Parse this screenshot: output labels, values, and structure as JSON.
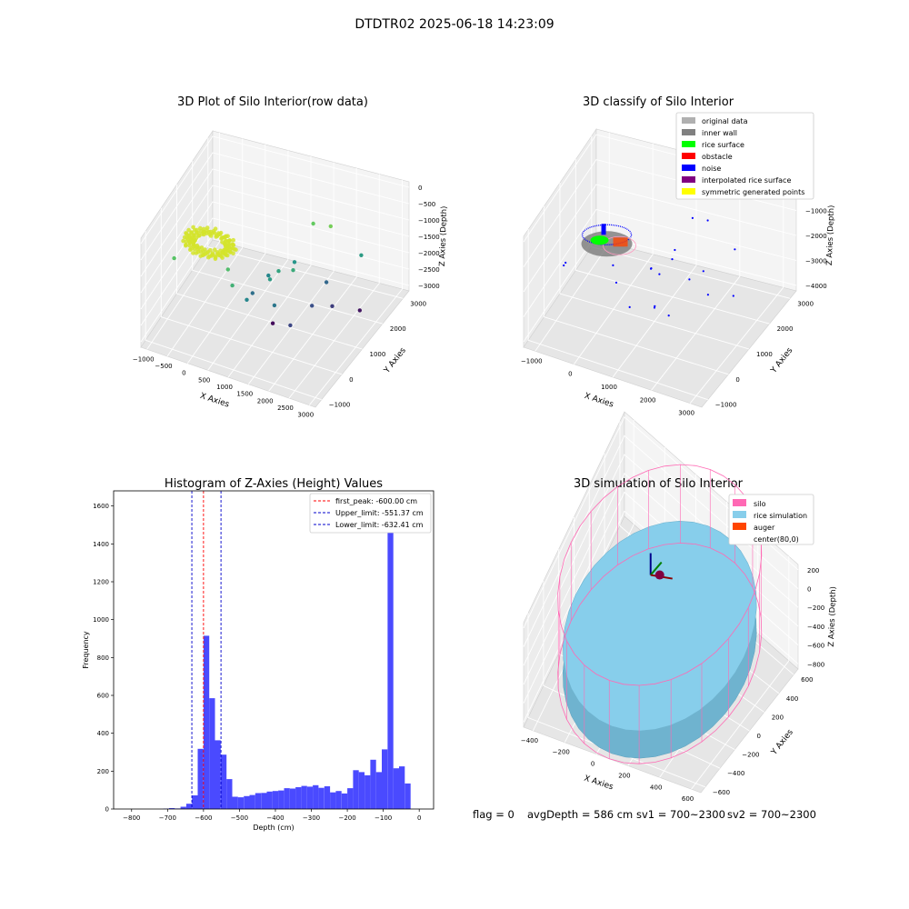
{
  "figure": {
    "suptitle": "DTDTR02 2025-06-18 14:23:09",
    "status_line": {
      "flag": "flag = 0",
      "avg_depth": "avgDepth = 586 cm",
      "sv1": "sv1 = 700~2300",
      "sv2": "sv2 = 700~2300"
    }
  },
  "colors": {
    "hist_bar": "#4a4aff",
    "first_peak_line": "#ff0000",
    "limit_line": "#0000cc",
    "pane_left": "#ececec",
    "pane_right": "#f4f4f4",
    "pane_floor": "#e6e6e6",
    "rice_sim": "#87ceeb",
    "silo": "#ff69b4",
    "auger": "#ff4500"
  },
  "chart_data": [
    {
      "type": "scatter3d",
      "title": "3D Plot of Silo Interior(row data)",
      "xlabel": "X Axies",
      "ylabel": "Y Axies",
      "zlabel": "Z Axies (Depth)",
      "xticks": [
        "−1000",
        "−500",
        "0",
        "500",
        "1000",
        "1500",
        "2000",
        "2500",
        "3000"
      ],
      "yticks": [
        "−1000",
        "0",
        "1000",
        "2000",
        "3000"
      ],
      "zticks": [
        "0",
        "−500",
        "−1000",
        "−1500",
        "−2000",
        "−2500",
        "−3000"
      ],
      "xlim": [
        -1000,
        3000
      ],
      "ylim": [
        -1500,
        3500
      ],
      "zlim": [
        -3300,
        0
      ],
      "colormap": "viridis by depth",
      "cluster": {
        "center_x": 80,
        "center_y": 0,
        "radius": 600,
        "depth_range": [
          -700,
          -550
        ],
        "color": "#d4e42a"
      },
      "points": [
        {
          "x": 2700,
          "y": 2500,
          "z": -3100
        },
        {
          "x": 1200,
          "y": 1000,
          "z": -3200
        },
        {
          "x": 1800,
          "y": 400,
          "z": -2600
        },
        {
          "x": 1500,
          "y": 200,
          "z": -2000
        },
        {
          "x": 1000,
          "y": -200,
          "z": -1800
        },
        {
          "x": 2000,
          "y": 1300,
          "z": -2500
        },
        {
          "x": 2300,
          "y": 1800,
          "z": -2700
        },
        {
          "x": 2700,
          "y": 2600,
          "z": -1500
        },
        {
          "x": 1700,
          "y": 2300,
          "z": -800
        },
        {
          "x": 1500,
          "y": 1600,
          "z": -1600
        },
        {
          "x": 800,
          "y": -600,
          "z": -1200
        },
        {
          "x": 1300,
          "y": 500,
          "z": -1500
        },
        {
          "x": 2100,
          "y": 2300,
          "z": -700
        },
        {
          "x": 1400,
          "y": 800,
          "z": -1400
        },
        {
          "x": 600,
          "y": -300,
          "z": -1000
        },
        {
          "x": 900,
          "y": 500,
          "z": -2100
        },
        {
          "x": -500,
          "y": -700,
          "z": -900
        },
        {
          "x": 2100,
          "y": 2000,
          "z": -2200
        },
        {
          "x": 1100,
          "y": 1000,
          "z": -1800
        },
        {
          "x": 1700,
          "y": 900,
          "z": -1300
        }
      ]
    },
    {
      "type": "scatter3d",
      "title": "3D classify of Silo Interior",
      "xlabel": "X Axies",
      "ylabel": "Y Axies",
      "zlabel": "Z Axies (Depth)",
      "xticks": [
        "−1000",
        "0",
        "1000",
        "2000",
        "3000"
      ],
      "yticks": [
        "−1000",
        "0",
        "1000",
        "2000",
        "3000"
      ],
      "zticks": [
        "0",
        "−1000",
        "−2000",
        "−3000",
        "−4000"
      ],
      "xlim": [
        -1300,
        3400
      ],
      "ylim": [
        -1500,
        3500
      ],
      "zlim": [
        -4000,
        0
      ],
      "legend_position": "upper right",
      "legend": [
        {
          "label": "original data",
          "color": "#b0b0b0"
        },
        {
          "label": "inner wall",
          "color": "#808080"
        },
        {
          "label": "rice surface",
          "color": "#00ff00"
        },
        {
          "label": "obstacle",
          "color": "#ff0000"
        },
        {
          "label": "noise",
          "color": "#0000ff"
        },
        {
          "label": "interpolated rice surface",
          "color": "#800080"
        },
        {
          "label": "symmetric generated points",
          "color": "#ffff00"
        }
      ],
      "noise_points": [
        {
          "x": 2700,
          "y": 2500,
          "z": -3400
        },
        {
          "x": 1200,
          "y": 1000,
          "z": -3300
        },
        {
          "x": 1800,
          "y": 400,
          "z": -2900
        },
        {
          "x": 1500,
          "y": 200,
          "z": -2600
        },
        {
          "x": 1000,
          "y": -200,
          "z": -2500
        },
        {
          "x": 2000,
          "y": 1300,
          "z": -2200
        },
        {
          "x": 2300,
          "y": 1800,
          "z": -3000
        },
        {
          "x": 2700,
          "y": 2600,
          "z": -1800
        },
        {
          "x": 1700,
          "y": 2300,
          "z": -900
        },
        {
          "x": 1500,
          "y": 1600,
          "z": -1600
        },
        {
          "x": 800,
          "y": -600,
          "z": -1400
        },
        {
          "x": 1300,
          "y": 500,
          "z": -1500
        },
        {
          "x": 2100,
          "y": 2300,
          "z": -800
        },
        {
          "x": 1400,
          "y": 800,
          "z": -1900
        },
        {
          "x": 600,
          "y": -300,
          "z": -1100
        },
        {
          "x": -500,
          "y": -700,
          "z": -1200
        },
        {
          "x": 2100,
          "y": 2000,
          "z": -2400
        },
        {
          "x": 1100,
          "y": 1000,
          "z": -2000
        },
        {
          "x": 1700,
          "y": 900,
          "z": -1300
        },
        {
          "x": -700,
          "y": -300,
          "z": -1700
        }
      ]
    },
    {
      "type": "bar",
      "title": "Histogram of Z-Axies (Height) Values",
      "xlabel": "Depth (cm)",
      "ylabel": "Frequency",
      "xlim": [
        -850,
        40
      ],
      "ylim": [
        0,
        1680
      ],
      "xticks": [
        -800,
        -700,
        -600,
        -500,
        -400,
        -300,
        -200,
        -100,
        0
      ],
      "yticks": [
        0,
        200,
        400,
        600,
        800,
        1000,
        1200,
        1400,
        1600
      ],
      "bin_width": 16,
      "bins_left": [
        -712,
        -696,
        -680,
        -664,
        -648,
        -632,
        -616,
        -600,
        -584,
        -568,
        -552,
        -536,
        -520,
        -504,
        -488,
        -472,
        -456,
        -440,
        -424,
        -408,
        -392,
        -376,
        -360,
        -344,
        -328,
        -312,
        -296,
        -280,
        -264,
        -248,
        -232,
        -216,
        -200,
        -184,
        -168,
        -152,
        -136,
        -120,
        -104,
        -88,
        -72,
        -56,
        -40,
        -24,
        -8
      ],
      "counts": [
        2,
        5,
        3,
        12,
        28,
        72,
        318,
        915,
        585,
        363,
        287,
        158,
        65,
        62,
        68,
        74,
        84,
        85,
        92,
        95,
        98,
        110,
        108,
        115,
        122,
        118,
        126,
        112,
        120,
        88,
        95,
        82,
        110,
        205,
        195,
        178,
        260,
        195,
        315,
        1580,
        215,
        225,
        135,
        0,
        0
      ],
      "legend_position": "upper right",
      "reference_lines": [
        {
          "label": "first_peak: -600.00 cm",
          "value": -600.0,
          "color": "#ff0000"
        },
        {
          "label": "Upper_limit: -551.37 cm",
          "value": -551.37,
          "color": "#0000cc"
        },
        {
          "label": "Lower_limit: -632.41 cm",
          "value": -632.41,
          "color": "#0000cc"
        }
      ]
    },
    {
      "type": "surface3d",
      "title": "3D simulation of Silo Interior",
      "xlabel": "X Axies",
      "ylabel": "Y Axies",
      "zlabel": "Z Axies (Depth)",
      "xticks": [
        "−400",
        "−200",
        "0",
        "200",
        "400",
        "600"
      ],
      "yticks": [
        "−600",
        "−400",
        "−200",
        "0",
        "200",
        "400",
        "600"
      ],
      "zticks": [
        "200",
        "0",
        "−200",
        "−400",
        "−600",
        "−800"
      ],
      "xlim": [
        -500,
        700
      ],
      "ylim": [
        -600,
        600
      ],
      "zlim": [
        -900,
        300
      ],
      "legend_position": "upper right",
      "legend": [
        {
          "label": "silo",
          "color": "#ff69b4"
        },
        {
          "label": "rice simulation",
          "color": "#87ceeb"
        },
        {
          "label": "auger",
          "color": "#ff4500"
        },
        {
          "label": "center(80,0)",
          "color": ""
        }
      ],
      "silo": {
        "center_x": 80,
        "center_y": 0,
        "radius": 600,
        "z_top": 0,
        "z_bottom": -900
      },
      "rice_surface_z": -586,
      "center_marker": {
        "x": 80,
        "y": 0,
        "z": 0
      }
    }
  ]
}
